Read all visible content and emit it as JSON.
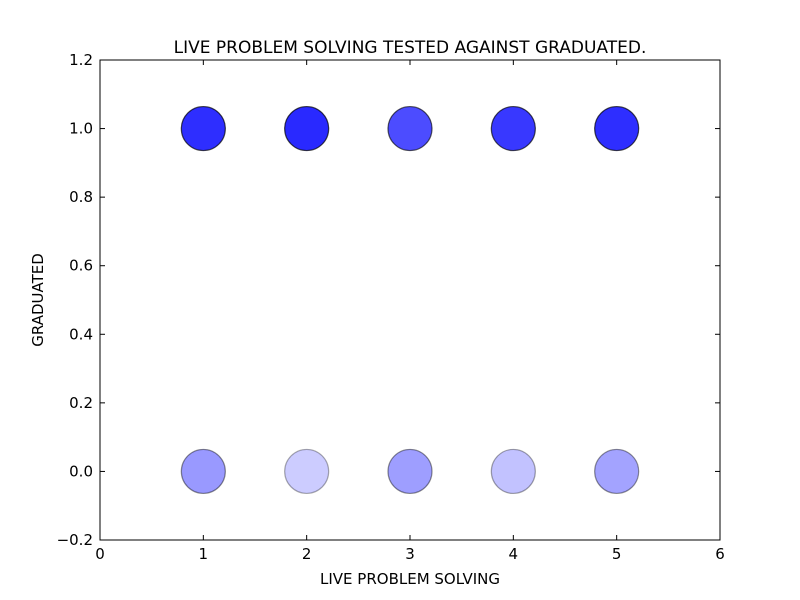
{
  "chart_data": {
    "type": "scatter",
    "title": "LIVE PROBLEM SOLVING TESTED AGAINST GRADUATED.",
    "xlabel": "LIVE PROBLEM SOLVING",
    "ylabel": "GRADUATED",
    "xlim": [
      0,
      6
    ],
    "ylim": [
      -0.2,
      1.2
    ],
    "x_ticks": [
      "0",
      "1",
      "2",
      "3",
      "4",
      "5",
      "6"
    ],
    "y_ticks": [
      "−0.2",
      "0.0",
      "0.2",
      "0.4",
      "0.6",
      "0.8",
      "1.0",
      "1.2"
    ],
    "grid": false,
    "marker_color": "#0000ff",
    "points": [
      {
        "x": 1,
        "y": 1,
        "opacity": 0.82
      },
      {
        "x": 2,
        "y": 1,
        "opacity": 0.84
      },
      {
        "x": 3,
        "y": 1,
        "opacity": 0.7
      },
      {
        "x": 4,
        "y": 1,
        "opacity": 0.78
      },
      {
        "x": 5,
        "y": 1,
        "opacity": 0.82
      },
      {
        "x": 1,
        "y": 0,
        "opacity": 0.4
      },
      {
        "x": 2,
        "y": 0,
        "opacity": 0.2
      },
      {
        "x": 3,
        "y": 0,
        "opacity": 0.38
      },
      {
        "x": 4,
        "y": 0,
        "opacity": 0.24
      },
      {
        "x": 5,
        "y": 0,
        "opacity": 0.36
      }
    ]
  }
}
